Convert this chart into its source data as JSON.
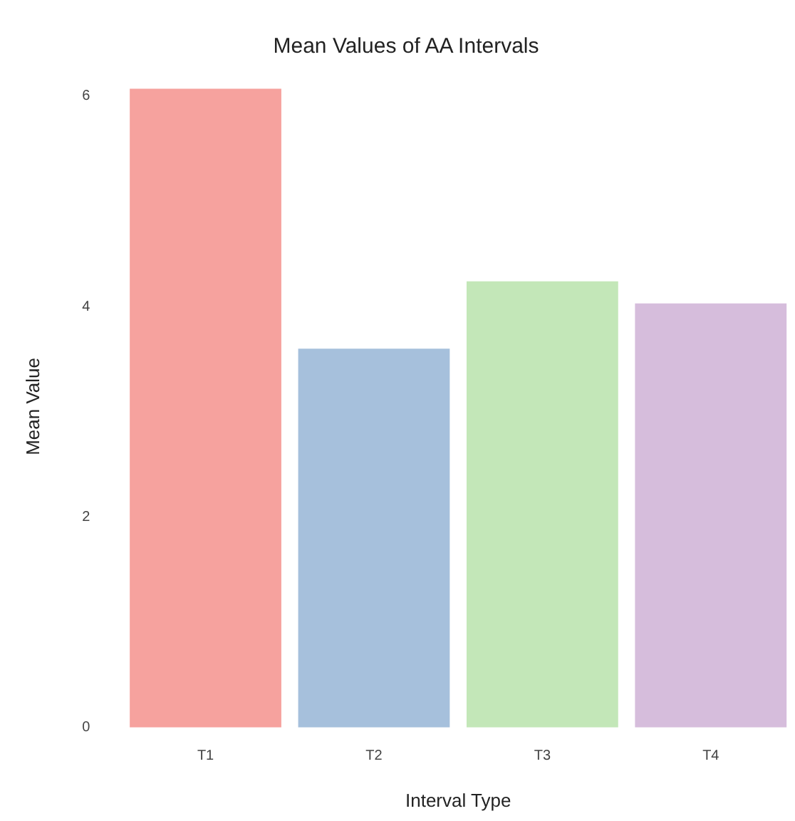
{
  "chart_data": {
    "type": "bar",
    "title": "Mean Values of AA Intervals",
    "xlabel": "Interval Type",
    "ylabel": "Mean Value",
    "categories": [
      "T1",
      "T2",
      "T3",
      "T4"
    ],
    "values": [
      6.07,
      3.6,
      4.24,
      4.03
    ],
    "colors": [
      "#f6a29e",
      "#a6c0dc",
      "#c3e7b8",
      "#d6bddc"
    ],
    "ylim": [
      0,
      6.1
    ],
    "yticks": [
      0,
      2,
      4,
      6
    ],
    "grid": false,
    "legend": false
  }
}
